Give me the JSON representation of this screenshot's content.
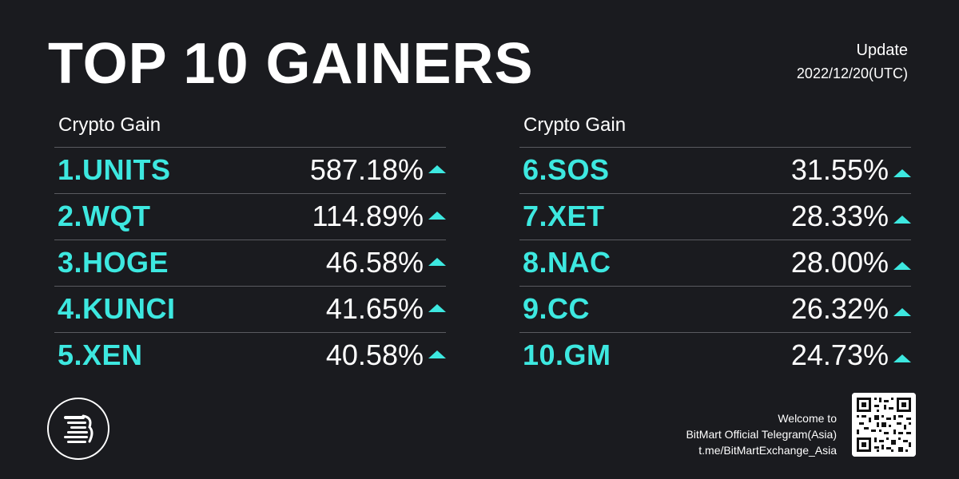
{
  "title": "TOP 10 GAINERS",
  "update": {
    "label": "Update",
    "date": "2022/12/20(UTC)"
  },
  "tables": {
    "left": {
      "header": "Crypto Gain",
      "rows": [
        {
          "coin": "1.UNITS",
          "gain": "587.18%"
        },
        {
          "coin": "2.WQT",
          "gain": "114.89%"
        },
        {
          "coin": "3.HOGE",
          "gain": "46.58%"
        },
        {
          "coin": "4.KUNCI",
          "gain": "41.65%"
        },
        {
          "coin": "5.XEN",
          "gain": "40.58%"
        }
      ]
    },
    "right": {
      "header": "Crypto Gain",
      "rows": [
        {
          "coin": "6.SOS",
          "gain": "31.55%"
        },
        {
          "coin": "7.XET",
          "gain": "28.33%"
        },
        {
          "coin": "8.NAC",
          "gain": "28.00%"
        },
        {
          "coin": "9.CC",
          "gain": "26.32%"
        },
        {
          "coin": "10.GM",
          "gain": "24.73%"
        }
      ]
    }
  },
  "footer": {
    "line1": "Welcome to",
    "line2": "BitMart Official Telegram(Asia)",
    "line3": "t.me/BitMartExchange_Asia"
  },
  "icons": {
    "logo": "bitmart-logo-icon",
    "qr": "qr-code-icon",
    "arrow": "up-arrow-icon"
  },
  "colors": {
    "background": "#1a1b1f",
    "accent": "#3de8e0",
    "text": "#ffffff",
    "divider": "#5a5b60"
  }
}
